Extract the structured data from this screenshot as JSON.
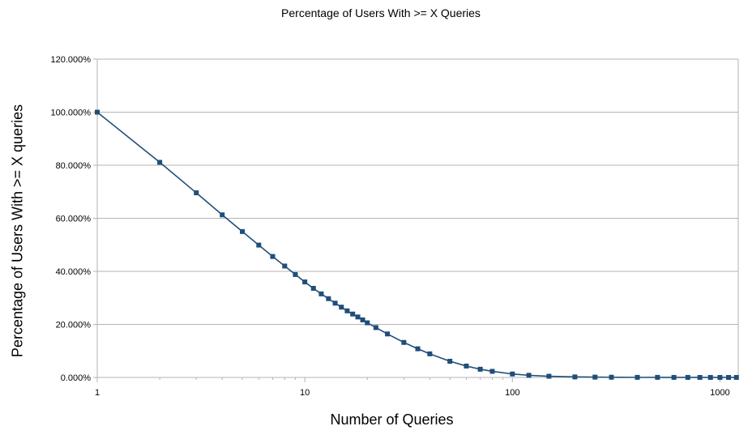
{
  "chart_data": {
    "type": "line",
    "title": "Percentage of Users With >= X Queries",
    "xlabel": "Number of Queries",
    "ylabel": "Percentage of Users With >= X queries",
    "x_scale": "log",
    "xlim": [
      1,
      1225
    ],
    "ylim": [
      0,
      120
    ],
    "x_ticks": [
      1,
      10,
      100,
      1000
    ],
    "x_tick_labels": [
      "1",
      "10",
      "100",
      "1000"
    ],
    "y_ticks": [
      0,
      20,
      40,
      60,
      80,
      100,
      120
    ],
    "y_tick_labels": [
      "0.000%",
      "20.000%",
      "40.000%",
      "60.000%",
      "80.000%",
      "100.000%",
      "120.000%"
    ],
    "grid": "horizontal",
    "legend": "none",
    "series": [
      {
        "color": "#1f4e79",
        "marker": "square",
        "x": [
          1,
          2,
          3,
          4,
          5,
          6,
          7,
          8,
          9,
          10,
          11,
          12,
          13,
          14,
          15,
          16,
          17,
          18,
          19,
          20,
          22,
          25,
          30,
          35,
          40,
          50,
          60,
          70,
          80,
          100,
          120,
          150,
          200,
          250,
          300,
          400,
          500,
          600,
          700,
          800,
          900,
          1000,
          1100,
          1200
        ],
        "y": [
          100,
          81.1,
          69.6,
          61.3,
          55.0,
          49.9,
          45.6,
          42.0,
          38.8,
          36.0,
          33.6,
          31.5,
          29.7,
          28.0,
          26.5,
          25.1,
          23.9,
          22.8,
          21.7,
          20.6,
          18.8,
          16.4,
          13.2,
          10.8,
          8.9,
          6.1,
          4.3,
          3.1,
          2.3,
          1.3,
          0.8,
          0.45,
          0.2,
          0.12,
          0.08,
          0.04,
          0.03,
          0.02,
          0.015,
          0.01,
          0.01,
          0.01,
          0.01,
          0.01
        ]
      }
    ]
  }
}
